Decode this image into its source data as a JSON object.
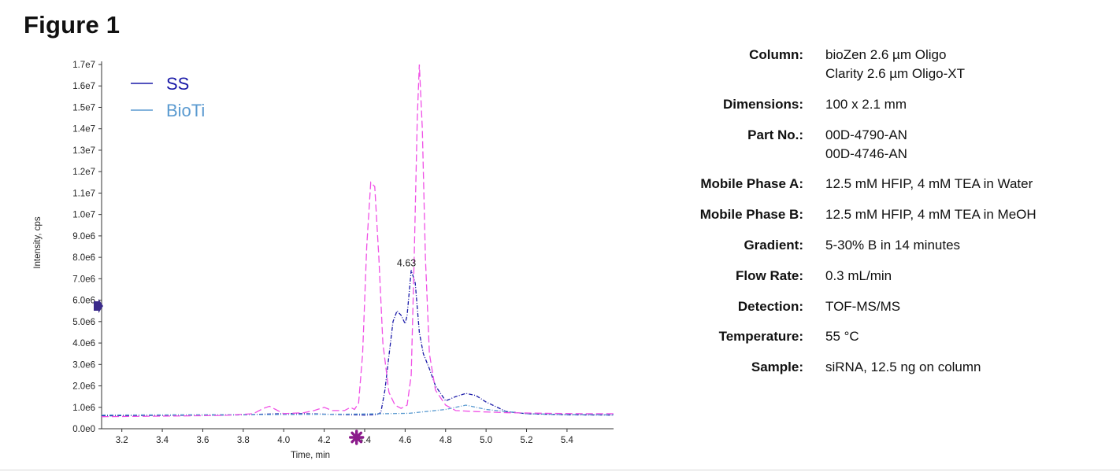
{
  "figure_title": "Figure 1",
  "colors": {
    "SS": "#1a1aa8",
    "BioTi": "#5a9ad0",
    "magenta": "#f050e6",
    "marker": "#8b1a8b",
    "arrow": "#3a2a8a"
  },
  "chart_data": {
    "type": "line",
    "xlabel": "Time, min",
    "ylabel": "Intensity, cps",
    "xlim": [
      3.1,
      5.63
    ],
    "ylim": [
      0,
      17000000
    ],
    "x_ticks": [
      "3.2",
      "3.4",
      "3.6",
      "3.8",
      "4.0",
      "4.2",
      "4.4",
      "4.6",
      "4.8",
      "5.0",
      "5.2",
      "5.4"
    ],
    "y_ticks": [
      "0.0e0",
      "1.0e6",
      "2.0e6",
      "3.0e6",
      "4.0e6",
      "5.0e6",
      "6.0e6",
      "7.0e6",
      "8.0e6",
      "9.0e6",
      "1.0e7",
      "1.1e7",
      "1.2e7",
      "1.3e7",
      "1.4e7",
      "1.5e7",
      "1.6e7",
      "1.7e7"
    ],
    "legend": {
      "placement": "top-left",
      "entries": [
        "SS",
        "BioTi"
      ]
    },
    "annotations": [
      {
        "text": "4.63",
        "x": 4.63,
        "y": 7400000
      }
    ],
    "series": [
      {
        "name": "SS",
        "color": "#1a1aa8",
        "style": "dash-dot",
        "points": [
          [
            3.1,
            600000
          ],
          [
            3.3,
            620000
          ],
          [
            3.5,
            630000
          ],
          [
            3.7,
            640000
          ],
          [
            3.8,
            650000
          ],
          [
            3.9,
            680000
          ],
          [
            4.0,
            700000
          ],
          [
            4.1,
            700000
          ],
          [
            4.2,
            680000
          ],
          [
            4.3,
            660000
          ],
          [
            4.4,
            640000
          ],
          [
            4.46,
            660000
          ],
          [
            4.48,
            750000
          ],
          [
            4.5,
            1800000
          ],
          [
            4.52,
            3400000
          ],
          [
            4.54,
            5000000
          ],
          [
            4.56,
            5500000
          ],
          [
            4.58,
            5300000
          ],
          [
            4.6,
            4900000
          ],
          [
            4.61,
            5300000
          ],
          [
            4.63,
            7400000
          ],
          [
            4.65,
            6800000
          ],
          [
            4.67,
            4500000
          ],
          [
            4.69,
            3500000
          ],
          [
            4.72,
            2800000
          ],
          [
            4.75,
            2000000
          ],
          [
            4.8,
            1300000
          ],
          [
            4.85,
            1500000
          ],
          [
            4.9,
            1650000
          ],
          [
            4.95,
            1550000
          ],
          [
            5.0,
            1250000
          ],
          [
            5.1,
            800000
          ],
          [
            5.2,
            700000
          ],
          [
            5.4,
            650000
          ],
          [
            5.63,
            640000
          ]
        ]
      },
      {
        "name": "BioTi",
        "color": "#5a9ad0",
        "style": "dash-dot",
        "points": [
          [
            3.1,
            640000
          ],
          [
            3.5,
            650000
          ],
          [
            3.9,
            660000
          ],
          [
            4.3,
            680000
          ],
          [
            4.5,
            700000
          ],
          [
            4.62,
            720000
          ],
          [
            4.8,
            900000
          ],
          [
            4.9,
            1100000
          ],
          [
            5.0,
            900000
          ],
          [
            5.2,
            700000
          ],
          [
            5.4,
            660000
          ],
          [
            5.63,
            650000
          ]
        ]
      },
      {
        "name": "",
        "color": "#f050e6",
        "style": "dashed",
        "points": [
          [
            3.1,
            560000
          ],
          [
            3.3,
            580000
          ],
          [
            3.5,
            600000
          ],
          [
            3.7,
            620000
          ],
          [
            3.85,
            700000
          ],
          [
            3.9,
            950000
          ],
          [
            3.93,
            1050000
          ],
          [
            3.96,
            900000
          ],
          [
            4.0,
            700000
          ],
          [
            4.1,
            750000
          ],
          [
            4.15,
            850000
          ],
          [
            4.2,
            1000000
          ],
          [
            4.24,
            850000
          ],
          [
            4.3,
            850000
          ],
          [
            4.33,
            1000000
          ],
          [
            4.35,
            900000
          ],
          [
            4.37,
            1200000
          ],
          [
            4.39,
            3500000
          ],
          [
            4.41,
            8500000
          ],
          [
            4.43,
            11500000
          ],
          [
            4.45,
            11300000
          ],
          [
            4.47,
            8000000
          ],
          [
            4.49,
            4000000
          ],
          [
            4.52,
            1700000
          ],
          [
            4.55,
            1100000
          ],
          [
            4.58,
            950000
          ],
          [
            4.61,
            1100000
          ],
          [
            4.63,
            2500000
          ],
          [
            4.645,
            8000000
          ],
          [
            4.66,
            14500000
          ],
          [
            4.67,
            17000000
          ],
          [
            4.685,
            14000000
          ],
          [
            4.7,
            8000000
          ],
          [
            4.72,
            3500000
          ],
          [
            4.75,
            1800000
          ],
          [
            4.8,
            1100000
          ],
          [
            4.85,
            850000
          ],
          [
            4.95,
            800000
          ],
          [
            5.1,
            750000
          ],
          [
            5.3,
            720000
          ],
          [
            5.5,
            700000
          ],
          [
            5.63,
            700000
          ]
        ]
      }
    ]
  },
  "specs": [
    {
      "label": "Column:",
      "values": [
        "bioZen 2.6 µm Oligo",
        "Clarity 2.6 µm Oligo-XT"
      ]
    },
    {
      "label": "Dimensions:",
      "values": [
        "100 x 2.1 mm"
      ]
    },
    {
      "label": "Part No.:",
      "values": [
        "00D-4790-AN",
        "00D-4746-AN"
      ]
    },
    {
      "label": "Mobile Phase A:",
      "values": [
        "12.5 mM HFIP, 4 mM TEA in Water"
      ]
    },
    {
      "label": "Mobile Phase B:",
      "values": [
        "12.5 mM HFIP, 4 mM TEA in MeOH"
      ]
    },
    {
      "label": "Gradient:",
      "values": [
        "5-30% B in 14 minutes"
      ]
    },
    {
      "label": "Flow Rate:",
      "values": [
        "0.3 mL/min"
      ]
    },
    {
      "label": "Detection:",
      "values": [
        "TOF-MS/MS"
      ]
    },
    {
      "label": "Temperature:",
      "values": [
        "55 °C"
      ]
    },
    {
      "label": "Sample:",
      "values": [
        "siRNA, 12.5 ng on column"
      ]
    }
  ]
}
